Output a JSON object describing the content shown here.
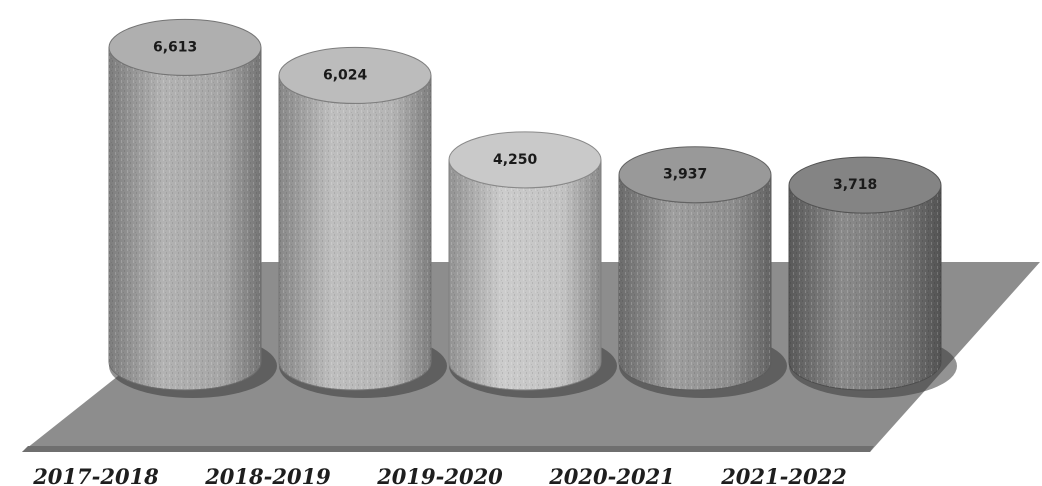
{
  "chart_data": {
    "type": "bar",
    "style": "3d-cylinder",
    "categories": [
      "2017-2018",
      "2018-2019",
      "2019-2020",
      "2020-2021",
      "2021-2022"
    ],
    "values": [
      6613,
      6024,
      4250,
      3937,
      3718
    ],
    "value_labels": [
      "6,613",
      "6,024",
      "4,250",
      "3,937",
      "3,718"
    ],
    "title": "",
    "xlabel": "",
    "ylabel": "",
    "ylim": [
      0,
      7000
    ],
    "grid": false,
    "legend": "none",
    "colors": [
      "#a6a6a6",
      "#b4b4b4",
      "#c3c3c3",
      "#8e8e8e",
      "#767676"
    ],
    "floor_color": "#8d8d8d"
  }
}
